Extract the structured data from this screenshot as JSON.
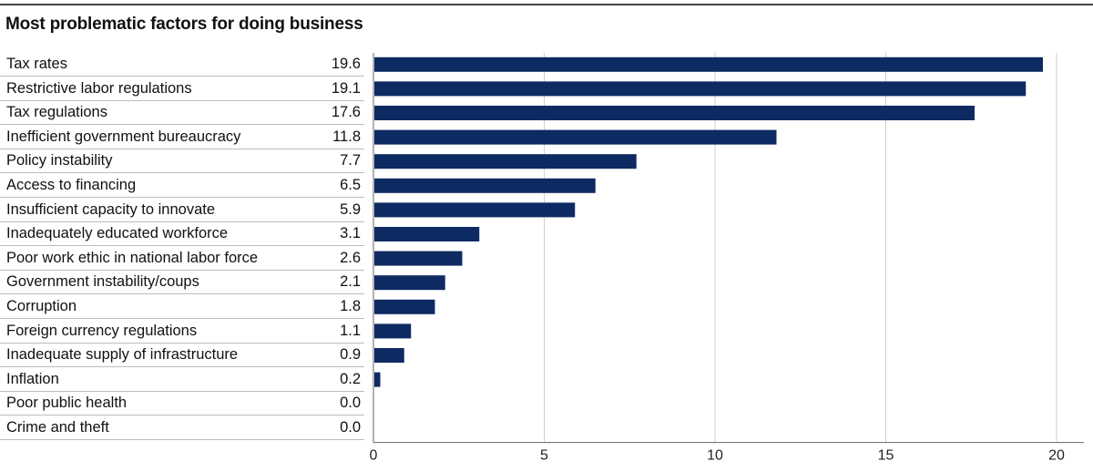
{
  "chart_data": {
    "type": "bar",
    "orientation": "horizontal",
    "title": "Most problematic factors for doing business",
    "categories": [
      "Tax rates",
      "Restrictive labor regulations",
      "Tax regulations",
      "Inefficient government bureaucracy",
      "Policy instability",
      "Access to financing",
      "Insufficient capacity to innovate",
      "Inadequately educated workforce",
      "Poor work ethic in national labor force",
      "Government instability/coups",
      "Corruption",
      "Foreign currency regulations",
      "Inadequate supply of infrastructure",
      "Inflation",
      "Poor public health",
      "Crime and theft"
    ],
    "values": [
      19.6,
      19.1,
      17.6,
      11.8,
      7.7,
      6.5,
      5.9,
      3.1,
      2.6,
      2.1,
      1.8,
      1.1,
      0.9,
      0.2,
      0.0,
      0.0
    ],
    "value_labels": [
      "19.6",
      "19.1",
      "17.6",
      "11.8",
      "7.7",
      "6.5",
      "5.9",
      "3.1",
      "2.6",
      "2.1",
      "1.8",
      "1.1",
      "0.9",
      "0.2",
      "0.0",
      "0.0"
    ],
    "xlim": [
      0,
      20
    ],
    "x_ticks": [
      "0",
      "5",
      "10",
      "15",
      "20"
    ],
    "x_tick_values": [
      0,
      5,
      10,
      15,
      20
    ],
    "bar_color": "#0e2a63",
    "grid": true,
    "xlabel": "",
    "ylabel": ""
  }
}
